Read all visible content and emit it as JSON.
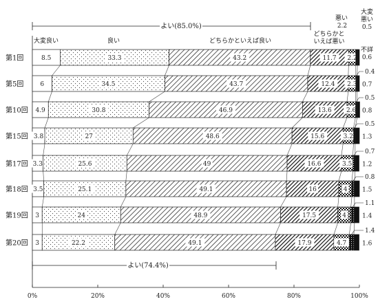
{
  "chart_data": {
    "type": "bar",
    "orientation": "horizontal",
    "stacked": true,
    "percent_stacked": true,
    "categories": [
      "第1回",
      "第5回",
      "第10回",
      "第15回",
      "第17回",
      "第18回",
      "第19回",
      "第20回"
    ],
    "series": [
      {
        "name": "大変良い",
        "values": [
          8.5,
          6.0,
          4.9,
          3.8,
          3.3,
          3.5,
          3.0,
          3.0
        ]
      },
      {
        "name": "良い",
        "values": [
          33.3,
          34.5,
          30.8,
          27.0,
          25.6,
          25.1,
          24.0,
          22.2
        ]
      },
      {
        "name": "どちらかといえば良い",
        "values": [
          43.2,
          43.7,
          46.9,
          48.6,
          49.0,
          49.1,
          48.9,
          49.1
        ]
      },
      {
        "name": "どちらかといえば悪い",
        "values": [
          11.7,
          12.4,
          13.6,
          15.6,
          16.6,
          16.0,
          17.5,
          17.9
        ]
      },
      {
        "name": "悪い",
        "values": [
          2.2,
          2.3,
          2.6,
          3.2,
          3.5,
          4.0,
          4.0,
          4.7
        ]
      },
      {
        "name": "大変悪い",
        "values": [
          0.5,
          0.4,
          0.5,
          0.5,
          0.7,
          0.8,
          1.1,
          1.4
        ]
      },
      {
        "name": "不詳",
        "values": [
          0.6,
          0.7,
          0.8,
          1.3,
          1.2,
          1.5,
          1.4,
          1.6
        ]
      }
    ],
    "series_labels": {
      "s0": "大変良い",
      "s1": "良い",
      "s2": "どちらかといえば良い",
      "s3a": "どちらかと",
      "s3b": "いえば悪い",
      "s4a": "悪い",
      "s4b": "2.2",
      "s5a": "大変",
      "s5b": "悪い",
      "s5c": "0.5",
      "s6a": "不詳",
      "s6b": "0.6"
    },
    "annotations": {
      "top_bracket": "よい(85.0%)",
      "bottom_bracket": "よい(74.4%)"
    },
    "x_ticks": [
      "0%",
      "20%",
      "40%",
      "60%",
      "80%",
      "100%"
    ],
    "xlim": [
      0,
      100
    ],
    "grid": false,
    "legend": "labels above first bar"
  }
}
